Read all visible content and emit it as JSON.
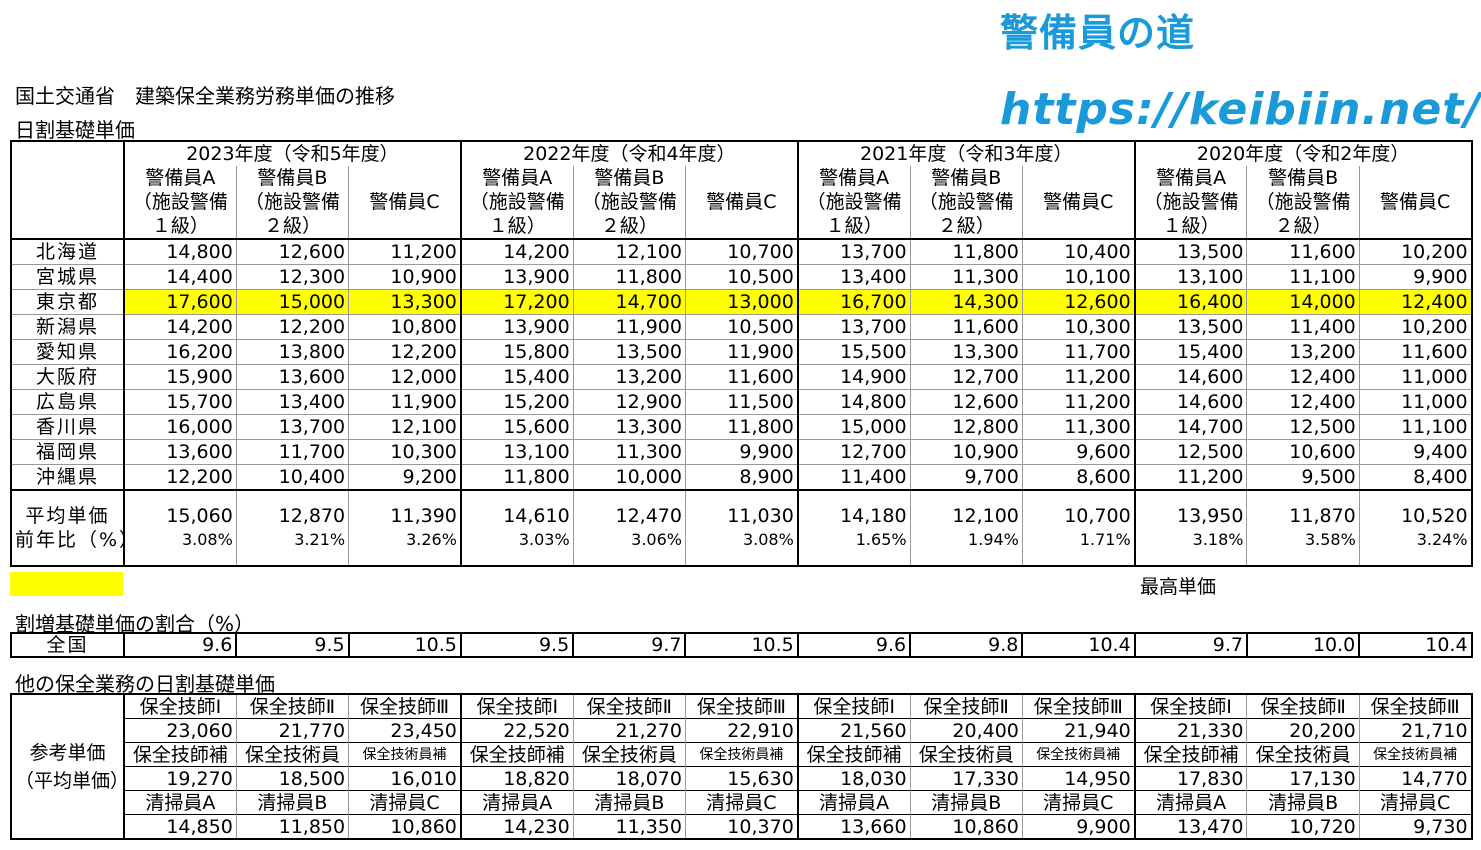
{
  "brand": {
    "name": "警備員の道",
    "url": "https://keibiin.net/",
    "color": "#1a9ad9"
  },
  "title": "国土交通省　建築保全業務労務単価の推移",
  "subtitle": "日割基礎単価",
  "highlight_color": "#ffff00",
  "main_table": {
    "years": [
      {
        "label": "2023年度（令和5年度）"
      },
      {
        "label": "2022年度（令和4年度）"
      },
      {
        "label": "2021年度（令和3年度）"
      },
      {
        "label": "2020年度（令和2年度）"
      }
    ],
    "columns": {
      "a_line1": "警備員A",
      "a_line2": "（施設警備",
      "a_line3": "１級）",
      "b_line1": "警備員B",
      "b_line2": "（施設警備",
      "b_line3": "２級）",
      "c": "警備員C"
    },
    "rows": [
      {
        "pref": "北海道",
        "values": [
          "14,800",
          "12,600",
          "11,200",
          "14,200",
          "12,100",
          "10,700",
          "13,700",
          "11,800",
          "10,400",
          "13,500",
          "11,600",
          "10,200"
        ]
      },
      {
        "pref": "宮城県",
        "values": [
          "14,400",
          "12,300",
          "10,900",
          "13,900",
          "11,800",
          "10,500",
          "13,400",
          "11,300",
          "10,100",
          "13,100",
          "11,100",
          "9,900"
        ]
      },
      {
        "pref": "東京都",
        "highlight": true,
        "values": [
          "17,600",
          "15,000",
          "13,300",
          "17,200",
          "14,700",
          "13,000",
          "16,700",
          "14,300",
          "12,600",
          "16,400",
          "14,000",
          "12,400"
        ]
      },
      {
        "pref": "新潟県",
        "values": [
          "14,200",
          "12,200",
          "10,800",
          "13,900",
          "11,900",
          "10,500",
          "13,700",
          "11,600",
          "10,300",
          "13,500",
          "11,400",
          "10,200"
        ]
      },
      {
        "pref": "愛知県",
        "values": [
          "16,200",
          "13,800",
          "12,200",
          "15,800",
          "13,500",
          "11,900",
          "15,500",
          "13,300",
          "11,700",
          "15,400",
          "13,200",
          "11,600"
        ]
      },
      {
        "pref": "大阪府",
        "values": [
          "15,900",
          "13,600",
          "12,000",
          "15,400",
          "13,200",
          "11,600",
          "14,900",
          "12,700",
          "11,200",
          "14,600",
          "12,400",
          "11,000"
        ]
      },
      {
        "pref": "広島県",
        "values": [
          "15,700",
          "13,400",
          "11,900",
          "15,200",
          "12,900",
          "11,500",
          "14,800",
          "12,600",
          "11,200",
          "14,600",
          "12,400",
          "11,000"
        ]
      },
      {
        "pref": "香川県",
        "values": [
          "16,000",
          "13,700",
          "12,100",
          "15,600",
          "13,300",
          "11,800",
          "15,000",
          "12,800",
          "11,300",
          "14,700",
          "12,500",
          "11,100"
        ]
      },
      {
        "pref": "福岡県",
        "values": [
          "13,600",
          "11,700",
          "10,300",
          "13,100",
          "11,300",
          "9,900",
          "12,700",
          "10,900",
          "9,600",
          "12,500",
          "10,600",
          "9,400"
        ]
      },
      {
        "pref": "沖縄県",
        "values": [
          "12,200",
          "10,400",
          "9,200",
          "11,800",
          "10,000",
          "8,900",
          "11,400",
          "9,700",
          "8,600",
          "11,200",
          "9,500",
          "8,400"
        ]
      }
    ],
    "average": {
      "label": "平均単価",
      "values": [
        "15,060",
        "12,870",
        "11,390",
        "14,610",
        "12,470",
        "11,030",
        "14,180",
        "12,100",
        "10,700",
        "13,950",
        "11,870",
        "10,520"
      ]
    },
    "yoy": {
      "label": "前年比（%）",
      "values": [
        "3.08%",
        "3.21%",
        "3.26%",
        "3.03%",
        "3.06%",
        "3.08%",
        "1.65%",
        "1.94%",
        "1.71%",
        "3.18%",
        "3.58%",
        "3.24%"
      ]
    }
  },
  "legend": {
    "label": "最高単価"
  },
  "ratio_table": {
    "title": "割増基礎単価の割合（%）",
    "label": "全国",
    "values": [
      "9.6",
      "9.5",
      "10.5",
      "9.5",
      "9.7",
      "10.5",
      "9.6",
      "9.8",
      "10.4",
      "9.7",
      "10.0",
      "10.4"
    ]
  },
  "other_table": {
    "title": "他の保全業務の日割基礎単価",
    "label_line1": "参考単価",
    "label_line2": "（平均単価）",
    "groups": [
      {
        "names": [
          "保全技師Ⅰ",
          "保全技師Ⅱ",
          "保全技師Ⅲ"
        ],
        "values": [
          "23,060",
          "21,770",
          "23,450",
          "22,520",
          "21,270",
          "22,910",
          "21,560",
          "20,400",
          "21,940",
          "21,330",
          "20,200",
          "21,710"
        ]
      },
      {
        "names": [
          "保全技師補",
          "保全技術員",
          "保全技術員補"
        ],
        "values": [
          "19,270",
          "18,500",
          "16,010",
          "18,820",
          "18,070",
          "15,630",
          "18,030",
          "17,330",
          "14,950",
          "17,830",
          "17,130",
          "14,770"
        ]
      },
      {
        "names": [
          "清掃員A",
          "清掃員B",
          "清掃員C"
        ],
        "values": [
          "14,850",
          "11,850",
          "10,860",
          "14,230",
          "11,350",
          "10,370",
          "13,660",
          "10,860",
          "9,900",
          "13,470",
          "10,720",
          "9,730"
        ]
      }
    ]
  }
}
